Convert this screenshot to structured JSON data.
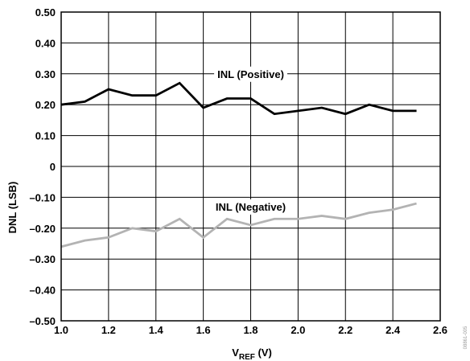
{
  "chart_data": {
    "type": "line",
    "xlabel": "V",
    "xlabel_sub": "REF",
    "xlabel_unit": " (V)",
    "ylabel": "DNL (LSB)",
    "xlim": [
      1.0,
      2.6
    ],
    "ylim": [
      -0.5,
      0.5
    ],
    "grid": true,
    "x_ticks": [
      1.0,
      1.2,
      1.4,
      1.6,
      1.8,
      2.0,
      2.2,
      2.4,
      2.6
    ],
    "x_tick_labels": [
      "1.0",
      "1.2",
      "1.4",
      "1.6",
      "1.8",
      "2.0",
      "2.2",
      "2.4",
      "2.6"
    ],
    "y_ticks": [
      0.5,
      0.4,
      0.3,
      0.2,
      0.1,
      0,
      -0.1,
      -0.2,
      -0.3,
      -0.4,
      -0.5
    ],
    "y_tick_labels": [
      "0.50",
      "0.40",
      "0.30",
      "0.20",
      "0.10",
      "0",
      "–0.10",
      "–0.20",
      "–0.30",
      "–0.40",
      "–0.50"
    ],
    "series": [
      {
        "name": "INL (Positive)",
        "color": "#000000",
        "x": [
          1.0,
          1.1,
          1.2,
          1.3,
          1.4,
          1.5,
          1.6,
          1.7,
          1.8,
          1.9,
          2.0,
          2.1,
          2.2,
          2.3,
          2.4,
          2.5
        ],
        "values": [
          0.2,
          0.21,
          0.25,
          0.23,
          0.23,
          0.27,
          0.19,
          0.22,
          0.22,
          0.17,
          0.18,
          0.19,
          0.17,
          0.2,
          0.18,
          0.18
        ],
        "label_at": [
          1.8,
          0.3
        ]
      },
      {
        "name": "INL (Negative)",
        "color": "#b3b3b3",
        "x": [
          1.0,
          1.1,
          1.2,
          1.3,
          1.4,
          1.5,
          1.6,
          1.7,
          1.8,
          1.9,
          2.0,
          2.1,
          2.2,
          2.3,
          2.4,
          2.5
        ],
        "values": [
          -0.26,
          -0.24,
          -0.23,
          -0.2,
          -0.21,
          -0.17,
          -0.23,
          -0.17,
          -0.19,
          -0.17,
          -0.17,
          -0.16,
          -0.17,
          -0.15,
          -0.14,
          -0.12
        ],
        "label_at": [
          1.8,
          -0.13
        ]
      }
    ],
    "figure_id": "08861-005"
  }
}
